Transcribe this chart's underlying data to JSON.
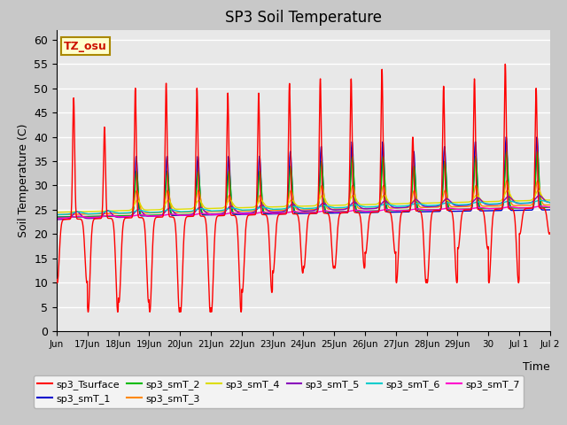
{
  "title": "SP3 Soil Temperature",
  "xlabel": "Time",
  "ylabel": "Soil Temperature (C)",
  "tz_label": "TZ_osu",
  "ylim": [
    0,
    62
  ],
  "yticks": [
    0,
    5,
    10,
    15,
    20,
    25,
    30,
    35,
    40,
    45,
    50,
    55,
    60
  ],
  "fig_bg_color": "#c8c8c8",
  "plot_bg_color": "#e8e8e8",
  "series_colors": {
    "sp3_Tsurface": "#ff0000",
    "sp3_smT_1": "#0000cc",
    "sp3_smT_2": "#00bb00",
    "sp3_smT_3": "#ff8800",
    "sp3_smT_4": "#dddd00",
    "sp3_smT_5": "#8800bb",
    "sp3_smT_6": "#00cccc",
    "sp3_smT_7": "#ff00cc"
  },
  "legend_entries": [
    "sp3_Tsurface",
    "sp3_smT_1",
    "sp3_smT_2",
    "sp3_smT_3",
    "sp3_smT_4",
    "sp3_smT_5",
    "sp3_smT_6",
    "sp3_smT_7"
  ],
  "x_tick_labels": [
    "Jun",
    "17Jun",
    "18Jun",
    "19Jun",
    "20Jun",
    "21Jun",
    "22Jun",
    "23Jun",
    "24Jun",
    "25Jun",
    "26Jun",
    "27Jun",
    "28Jun",
    "29Jun",
    "30",
    "Jul 1",
    "Jul 2"
  ],
  "n_days": 16,
  "pts_per_day": 144,
  "surface_peaks": [
    48,
    42,
    50,
    51,
    50,
    49,
    49,
    51,
    52,
    52,
    54,
    40,
    50.5,
    52,
    55,
    50
  ],
  "surface_nights": [
    10,
    4,
    6,
    4,
    4,
    4,
    8,
    12,
    13,
    13,
    16,
    10,
    10,
    17,
    10,
    20
  ],
  "smT1_peaks": [
    0,
    0,
    36,
    36,
    36,
    36,
    36,
    37,
    38,
    39,
    39,
    37,
    38,
    39,
    40,
    40
  ],
  "smT2_peaks": [
    0,
    0,
    33,
    33,
    33,
    33,
    33,
    34,
    35,
    36,
    36,
    34,
    35,
    36,
    37,
    37
  ],
  "smT3_peaks": [
    0,
    0,
    29,
    29,
    29,
    28,
    28,
    29,
    30,
    30,
    30,
    29,
    29,
    30,
    31,
    31
  ],
  "smT4_peaks": [
    0,
    0,
    27,
    27,
    27,
    27,
    27,
    27,
    28,
    28,
    28,
    27,
    27,
    28,
    29,
    29
  ]
}
